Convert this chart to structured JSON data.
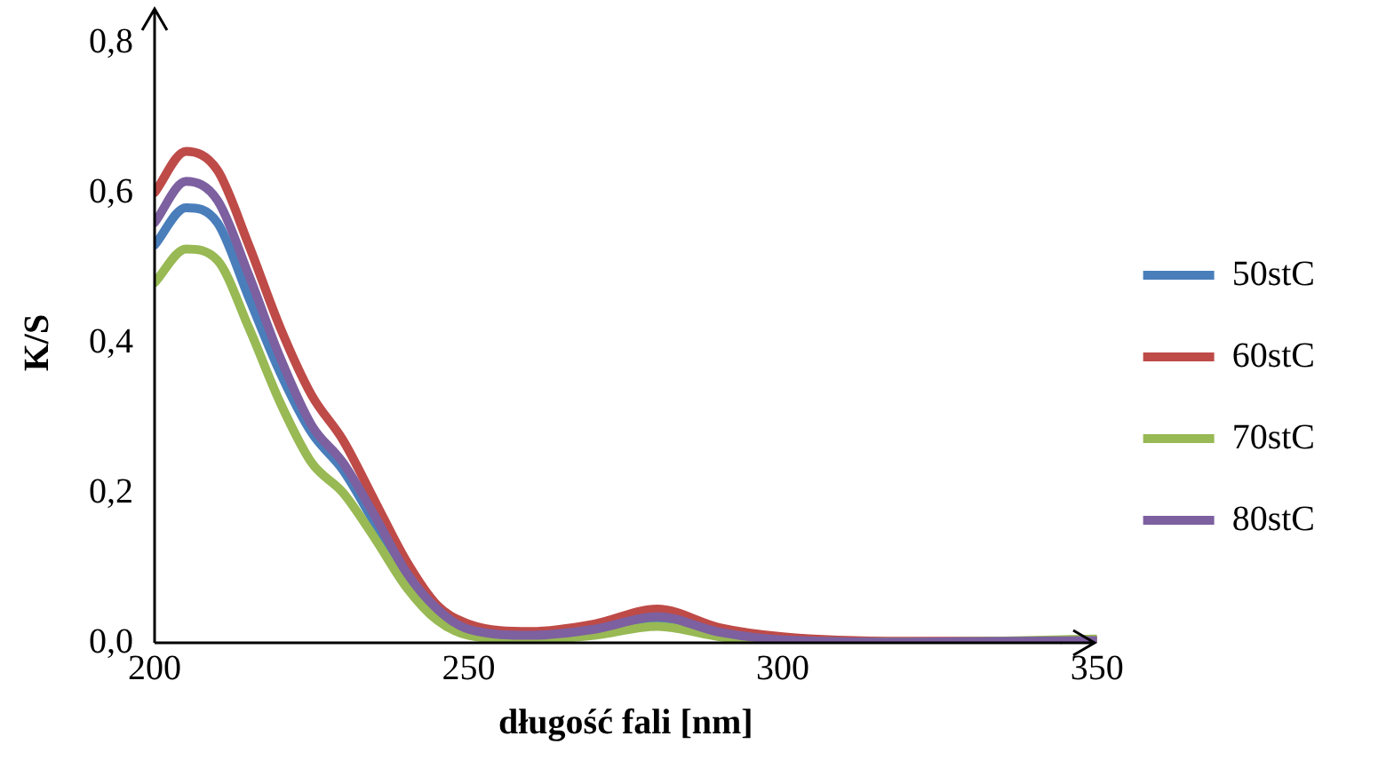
{
  "chart_data": {
    "type": "line",
    "xlabel": "długość fali [nm]",
    "ylabel": "K/S",
    "x": [
      200,
      205,
      210,
      215,
      220,
      225,
      230,
      235,
      240,
      245,
      250,
      260,
      270,
      280,
      290,
      300,
      320,
      350
    ],
    "series": [
      {
        "name": "50stC",
        "color": "#4a7ebb",
        "values": [
          0.53,
          0.58,
          0.56,
          0.46,
          0.36,
          0.28,
          0.23,
          0.16,
          0.09,
          0.04,
          0.015,
          0.008,
          0.015,
          0.03,
          0.012,
          null,
          null,
          null
        ]
      },
      {
        "name": "60stC",
        "color": "#be4b48",
        "values": [
          0.6,
          0.655,
          0.63,
          0.53,
          0.42,
          0.33,
          0.27,
          0.19,
          0.11,
          0.05,
          0.025,
          0.015,
          0.025,
          0.045,
          0.02,
          0.008,
          0.002,
          0.002
        ]
      },
      {
        "name": "70stC",
        "color": "#98b954",
        "values": [
          0.48,
          0.525,
          0.51,
          0.42,
          0.32,
          0.24,
          0.2,
          0.14,
          0.075,
          0.03,
          0.01,
          0.004,
          0.01,
          0.022,
          0.008,
          0.002,
          0.001,
          0.005
        ]
      },
      {
        "name": "80stC",
        "color": "#7d60a0",
        "values": [
          0.56,
          0.615,
          0.59,
          0.49,
          0.38,
          0.29,
          0.24,
          0.17,
          0.095,
          0.045,
          0.018,
          0.01,
          0.018,
          0.035,
          0.014,
          0.004,
          0.001,
          0.003
        ]
      }
    ],
    "xlim": [
      200,
      350
    ],
    "xticks": [
      200,
      250,
      300,
      350
    ],
    "ylim": [
      0,
      0.8
    ],
    "yticks": [
      {
        "value": 0,
        "label": "0,0"
      },
      {
        "value": 0.2,
        "label": "0,2"
      },
      {
        "value": 0.4,
        "label": "0,4"
      },
      {
        "value": 0.6,
        "label": "0,6"
      },
      {
        "value": 0.8,
        "label": "0,8"
      }
    ],
    "grid": false,
    "legend": "right",
    "marker": "none",
    "line_style": "solid"
  }
}
